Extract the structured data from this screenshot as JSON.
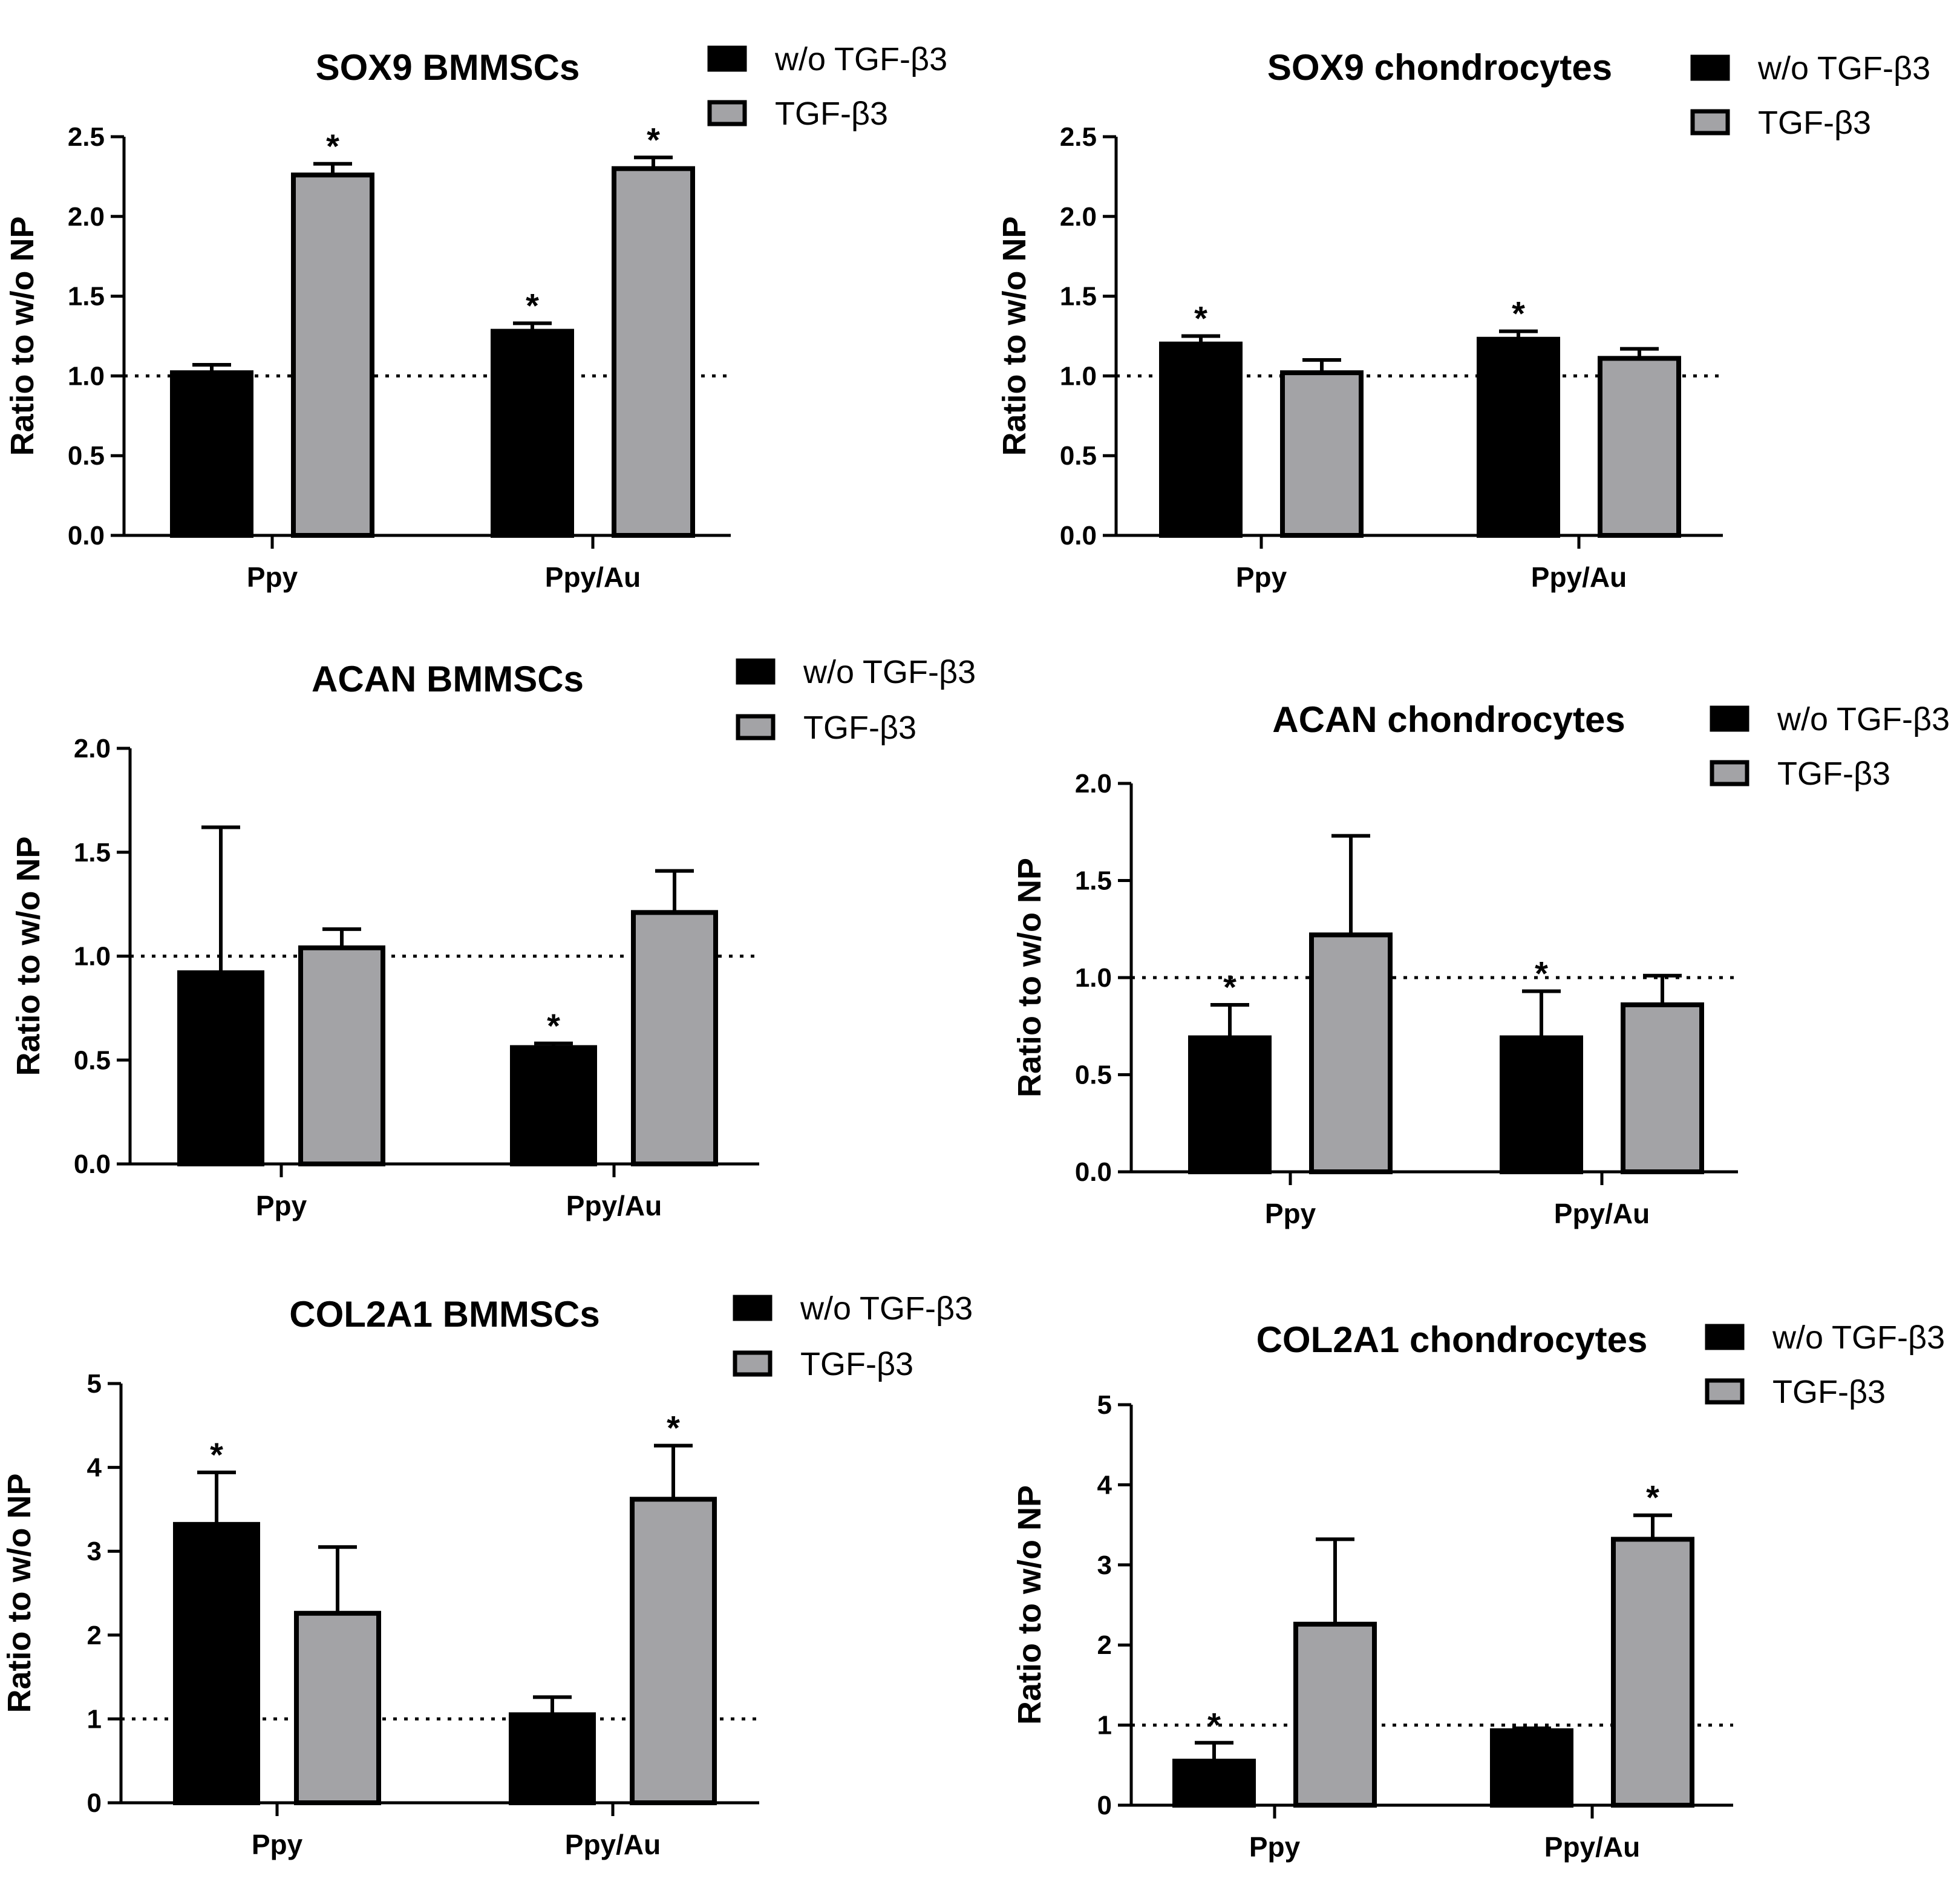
{
  "chart_data": [
    {
      "type": "bar",
      "title": "SOX9 BMMSCs",
      "ylabel": "Ratio to w/o NP",
      "categories": [
        "Ppy",
        "Ppy/Au"
      ],
      "yticks": [
        "0.0",
        "0.5",
        "1.0",
        "1.5",
        "2.0",
        "2.5"
      ],
      "ylim": [
        0,
        2.5
      ],
      "reference_line": 1.0,
      "series": [
        {
          "name": "w/o TGF-β3",
          "color": "#000000",
          "values": [
            1.02,
            1.28
          ],
          "errors": [
            0.05,
            0.05
          ],
          "stars": [
            "",
            "*"
          ]
        },
        {
          "name": "TGF-β3",
          "color": "#a3a3a6",
          "values": [
            2.26,
            2.3
          ],
          "errors": [
            0.07,
            0.07
          ],
          "stars": [
            "*",
            "*"
          ]
        }
      ]
    },
    {
      "type": "bar",
      "title": "SOX9 chondrocytes",
      "ylabel": "Ratio to w/o NP",
      "categories": [
        "Ppy",
        "Ppy/Au"
      ],
      "yticks": [
        "0.0",
        "0.5",
        "1.0",
        "1.5",
        "2.0",
        "2.5"
      ],
      "ylim": [
        0,
        2.5
      ],
      "reference_line": 1.0,
      "series": [
        {
          "name": "w/o TGF-β3",
          "color": "#000000",
          "values": [
            1.2,
            1.23
          ],
          "errors": [
            0.05,
            0.05
          ],
          "stars": [
            "*",
            "*"
          ]
        },
        {
          "name": "TGF-β3",
          "color": "#a3a3a6",
          "values": [
            1.02,
            1.11
          ],
          "errors": [
            0.08,
            0.06
          ],
          "stars": [
            "",
            ""
          ]
        }
      ]
    },
    {
      "type": "bar",
      "title": "ACAN BMMSCs",
      "ylabel": "Ratio to w/o NP",
      "categories": [
        "Ppy",
        "Ppy/Au"
      ],
      "yticks": [
        "0.0",
        "0.5",
        "1.0",
        "1.5",
        "2.0"
      ],
      "ylim": [
        0,
        2.0
      ],
      "reference_line": 1.0,
      "series": [
        {
          "name": "w/o TGF-β3",
          "color": "#000000",
          "values": [
            0.92,
            0.56
          ],
          "errors": [
            0.7,
            0.02
          ],
          "stars": [
            "",
            "*"
          ]
        },
        {
          "name": "TGF-β3",
          "color": "#a3a3a6",
          "values": [
            1.04,
            1.21
          ],
          "errors": [
            0.09,
            0.2
          ],
          "stars": [
            "",
            ""
          ]
        }
      ]
    },
    {
      "type": "bar",
      "title": "ACAN chondrocytes",
      "ylabel": "Ratio to w/o NP",
      "categories": [
        "Ppy",
        "Ppy/Au"
      ],
      "yticks": [
        "0.0",
        "0.5",
        "1.0",
        "1.5",
        "2.0"
      ],
      "ylim": [
        0,
        2.0
      ],
      "reference_line": 1.0,
      "series": [
        {
          "name": "w/o TGF-β3",
          "color": "#000000",
          "values": [
            0.69,
            0.69
          ],
          "errors": [
            0.17,
            0.24
          ],
          "stars": [
            "*",
            "*"
          ]
        },
        {
          "name": "TGF-β3",
          "color": "#a3a3a6",
          "values": [
            1.22,
            0.86
          ],
          "errors": [
            0.51,
            0.15
          ],
          "stars": [
            "",
            ""
          ]
        }
      ]
    },
    {
      "type": "bar",
      "title": "COL2A1 BMMSCs",
      "ylabel": "Ratio to w/o NP",
      "categories": [
        "Ppy",
        "Ppy/Au"
      ],
      "yticks": [
        "0",
        "1",
        "2",
        "3",
        "4",
        "5"
      ],
      "ylim": [
        0,
        5
      ],
      "reference_line": 1.0,
      "series": [
        {
          "name": "w/o TGF-β3",
          "color": "#000000",
          "values": [
            3.32,
            1.05
          ],
          "errors": [
            0.62,
            0.21
          ],
          "stars": [
            "*",
            ""
          ]
        },
        {
          "name": "TGF-β3",
          "color": "#a3a3a6",
          "values": [
            2.26,
            3.62
          ],
          "errors": [
            0.79,
            0.64
          ],
          "stars": [
            "",
            "*"
          ]
        }
      ]
    },
    {
      "type": "bar",
      "title": "COL2A1 chondrocytes",
      "ylabel": "Ratio to w/o NP",
      "categories": [
        "Ppy",
        "Ppy/Au"
      ],
      "yticks": [
        "0",
        "1",
        "2",
        "3",
        "4",
        "5"
      ],
      "ylim": [
        0,
        5
      ],
      "reference_line": 1.0,
      "series": [
        {
          "name": "w/o TGF-β3",
          "color": "#000000",
          "values": [
            0.55,
            0.93
          ],
          "errors": [
            0.23,
            0.03
          ],
          "stars": [
            "*",
            ""
          ]
        },
        {
          "name": "TGF-β3",
          "color": "#a3a3a6",
          "values": [
            2.26,
            3.32
          ],
          "errors": [
            1.06,
            0.3
          ],
          "stars": [
            "",
            "*"
          ]
        }
      ]
    }
  ]
}
